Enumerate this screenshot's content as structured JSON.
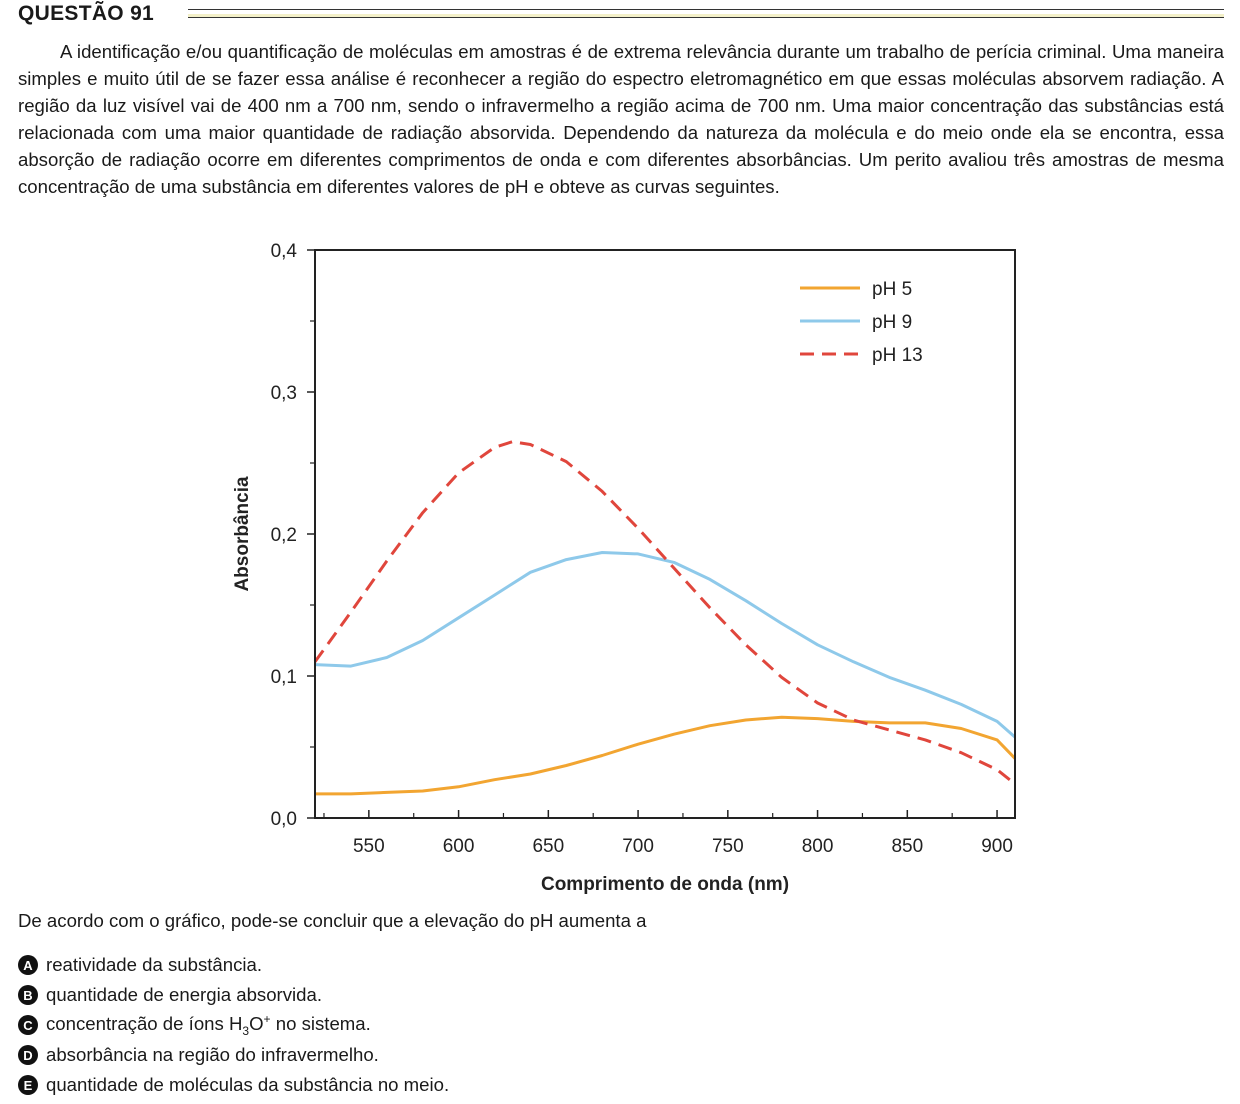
{
  "question": {
    "title": "QUESTÃO 91",
    "statement": "A identificação e/ou quantificação de moléculas em amostras é de extrema relevância durante um trabalho de perícia criminal. Uma maneira simples e muito útil de se fazer essa análise é reconhecer a região do espectro eletromagnético em que essas moléculas absorvem radiação. A região da luz visível vai de 400 nm a 700 nm, sendo o infravermelho a região acima de 700 nm. Uma maior concentração das substâncias está relacionada com uma maior quantidade de radiação absorvida. Dependendo da natureza da molécula e do meio onde ela se encontra, essa absorção de radiação ocorre em diferentes comprimentos de onda e com diferentes absorbâncias. Um perito avaliou três amostras de mesma concentração de uma substância em diferentes valores de pH e obteve as curvas seguintes.",
    "prompt": "De acordo com o gráfico, pode-se concluir que a elevação do pH aumenta a",
    "options": [
      {
        "letter": "A",
        "text": "reatividade da substância."
      },
      {
        "letter": "B",
        "text": "quantidade de energia absorvida."
      },
      {
        "letter": "C",
        "text_before": "concentração de íons H",
        "sub": "3",
        "mid": "O",
        "sup": "+",
        "text_after": " no sistema."
      },
      {
        "letter": "D",
        "text": "absorbância na região do infravermelho."
      },
      {
        "letter": "E",
        "text": "quantidade de moléculas da substância no meio."
      }
    ]
  },
  "chart_data": {
    "type": "line",
    "xlabel": "Comprimento de onda (nm)",
    "ylabel": "Absorbância",
    "xlim": [
      520,
      910
    ],
    "ylim": [
      0,
      0.4
    ],
    "xticks": [
      550,
      600,
      650,
      700,
      750,
      800,
      850,
      900
    ],
    "yticks": [
      0.0,
      0.1,
      0.2,
      0.3,
      0.4
    ],
    "ytick_labels": [
      "0,0",
      "0,1",
      "0,2",
      "0,3",
      "0,4"
    ],
    "legend_position": "top-right",
    "series": [
      {
        "name": "pH 5",
        "color": "#f2a531",
        "style": "solid",
        "x": [
          520,
          540,
          560,
          580,
          600,
          620,
          640,
          660,
          680,
          700,
          720,
          740,
          760,
          780,
          800,
          820,
          840,
          860,
          880,
          900,
          910
        ],
        "y": [
          0.017,
          0.017,
          0.018,
          0.019,
          0.022,
          0.027,
          0.031,
          0.037,
          0.044,
          0.052,
          0.059,
          0.065,
          0.069,
          0.071,
          0.07,
          0.068,
          0.067,
          0.067,
          0.063,
          0.055,
          0.042
        ]
      },
      {
        "name": "pH 9",
        "color": "#8ec9ea",
        "style": "solid",
        "x": [
          520,
          540,
          560,
          580,
          600,
          620,
          640,
          660,
          680,
          700,
          720,
          740,
          760,
          780,
          800,
          820,
          840,
          860,
          880,
          900,
          910
        ],
        "y": [
          0.108,
          0.107,
          0.113,
          0.125,
          0.141,
          0.157,
          0.173,
          0.182,
          0.187,
          0.186,
          0.18,
          0.168,
          0.153,
          0.137,
          0.122,
          0.11,
          0.099,
          0.09,
          0.08,
          0.068,
          0.057
        ]
      },
      {
        "name": "pH 13",
        "color": "#e0463c",
        "style": "dashed",
        "x": [
          520,
          540,
          560,
          580,
          600,
          620,
          630,
          640,
          660,
          680,
          700,
          720,
          740,
          760,
          780,
          800,
          820,
          840,
          860,
          880,
          900,
          910
        ],
        "y": [
          0.11,
          0.145,
          0.181,
          0.215,
          0.243,
          0.261,
          0.265,
          0.263,
          0.251,
          0.23,
          0.204,
          0.176,
          0.148,
          0.122,
          0.099,
          0.081,
          0.069,
          0.062,
          0.055,
          0.046,
          0.034,
          0.024
        ]
      }
    ]
  }
}
